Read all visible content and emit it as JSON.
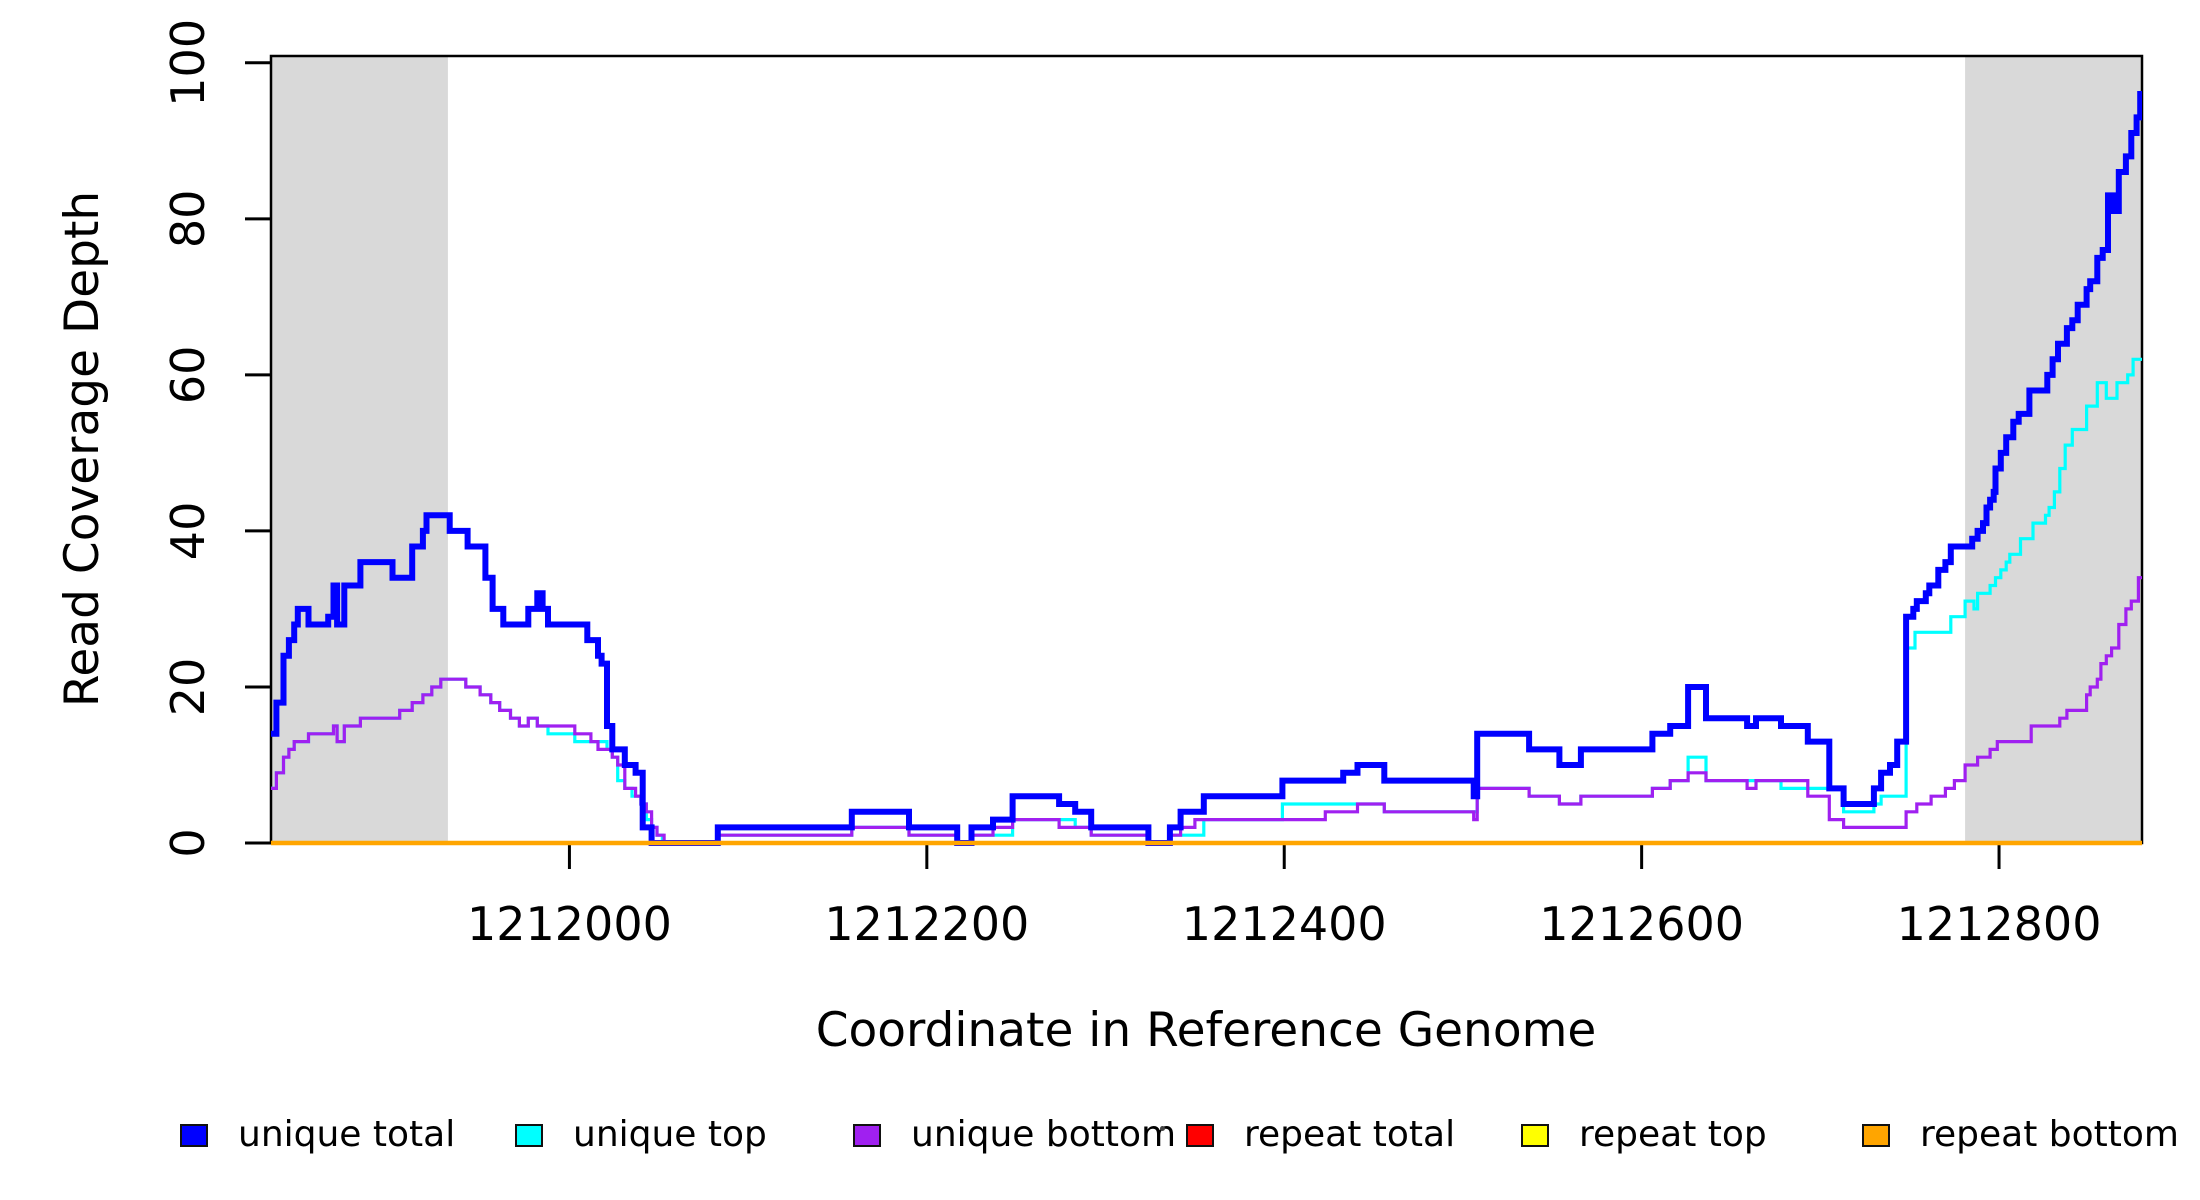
{
  "figure": {
    "kind": "read coverage depth step plot",
    "background_color": "#ffffff",
    "band_color": "#d9d9d9",
    "axis_color": "#000000"
  },
  "legend": {
    "items": [
      {
        "label": "unique total",
        "color": "#0000ff"
      },
      {
        "label": "unique top",
        "color": "#00ffff"
      },
      {
        "label": "unique bottom",
        "color": "#a020f0"
      },
      {
        "label": "repeat total",
        "color": "#ff0000"
      },
      {
        "label": "repeat top",
        "color": "#ffff00"
      },
      {
        "label": "repeat bottom",
        "color": "#ffa500"
      }
    ],
    "has_stray_dot": true
  },
  "chart_data": {
    "type": "step",
    "title": "",
    "xlabel": "Coordinate in Reference Genome",
    "ylabel": "Read Coverage Depth",
    "xlim": [
      1211833,
      1212880
    ],
    "ylim": [
      0,
      101
    ],
    "x_ticks": [
      1212000,
      1212200,
      1212400,
      1212600,
      1212800
    ],
    "y_ticks": [
      0,
      20,
      40,
      60,
      80,
      100
    ],
    "grid": false,
    "legend_position": "bottom-horizontal",
    "shaded_regions": [
      {
        "from": 1211833,
        "to": 1211932
      },
      {
        "from": 1212781,
        "to": 1212880
      }
    ],
    "series": [
      {
        "name": "unique total",
        "color": "#0000ff",
        "line_width": 6,
        "points": [
          [
            1211833,
            14
          ],
          [
            1211836,
            18
          ],
          [
            1211840,
            24
          ],
          [
            1211843,
            26
          ],
          [
            1211846,
            28
          ],
          [
            1211848,
            30
          ],
          [
            1211854,
            28
          ],
          [
            1211865,
            29
          ],
          [
            1211868,
            33
          ],
          [
            1211870,
            28
          ],
          [
            1211874,
            33
          ],
          [
            1211883,
            36
          ],
          [
            1211901,
            34
          ],
          [
            1211912,
            38
          ],
          [
            1211918,
            40
          ],
          [
            1211920,
            42
          ],
          [
            1211933,
            40
          ],
          [
            1211943,
            38
          ],
          [
            1211953,
            34
          ],
          [
            1211957,
            30
          ],
          [
            1211963,
            28
          ],
          [
            1211977,
            30
          ],
          [
            1211982,
            32
          ],
          [
            1211985,
            30
          ],
          [
            1211988,
            28
          ],
          [
            1212010,
            26
          ],
          [
            1212016,
            24
          ],
          [
            1212018,
            23
          ],
          [
            1212021,
            15
          ],
          [
            1212024,
            12
          ],
          [
            1212031,
            10
          ],
          [
            1212037,
            9
          ],
          [
            1212041,
            2
          ],
          [
            1212046,
            0
          ],
          [
            1212083,
            2
          ],
          [
            1212158,
            4
          ],
          [
            1212190,
            2
          ],
          [
            1212217,
            0
          ],
          [
            1212225,
            2
          ],
          [
            1212237,
            3
          ],
          [
            1212248,
            6
          ],
          [
            1212274,
            5
          ],
          [
            1212283,
            4
          ],
          [
            1212292,
            2
          ],
          [
            1212324,
            0
          ],
          [
            1212336,
            2
          ],
          [
            1212342,
            4
          ],
          [
            1212355,
            6
          ],
          [
            1212399,
            8
          ],
          [
            1212433,
            9
          ],
          [
            1212441,
            10
          ],
          [
            1212456,
            8
          ],
          [
            1212506,
            6
          ],
          [
            1212508,
            14
          ],
          [
            1212537,
            12
          ],
          [
            1212554,
            10
          ],
          [
            1212566,
            12
          ],
          [
            1212606,
            14
          ],
          [
            1212616,
            15
          ],
          [
            1212626,
            20
          ],
          [
            1212636,
            16
          ],
          [
            1212659,
            15
          ],
          [
            1212664,
            16
          ],
          [
            1212678,
            15
          ],
          [
            1212693,
            13
          ],
          [
            1212705,
            7
          ],
          [
            1212713,
            5
          ],
          [
            1212730,
            7
          ],
          [
            1212734,
            9
          ],
          [
            1212739,
            10
          ],
          [
            1212743,
            13
          ],
          [
            1212748,
            29
          ],
          [
            1212752,
            30
          ],
          [
            1212754,
            31
          ],
          [
            1212759,
            32
          ],
          [
            1212761,
            33
          ],
          [
            1212766,
            35
          ],
          [
            1212770,
            36
          ],
          [
            1212773,
            38
          ],
          [
            1212785,
            39
          ],
          [
            1212788,
            40
          ],
          [
            1212791,
            41
          ],
          [
            1212793,
            43
          ],
          [
            1212795,
            44
          ],
          [
            1212797,
            45
          ],
          [
            1212798,
            48
          ],
          [
            1212801,
            50
          ],
          [
            1212804,
            52
          ],
          [
            1212808,
            54
          ],
          [
            1212811,
            55
          ],
          [
            1212817,
            58
          ],
          [
            1212827,
            60
          ],
          [
            1212830,
            62
          ],
          [
            1212833,
            64
          ],
          [
            1212838,
            66
          ],
          [
            1212841,
            67
          ],
          [
            1212844,
            69
          ],
          [
            1212849,
            71
          ],
          [
            1212851,
            72
          ],
          [
            1212855,
            75
          ],
          [
            1212858,
            76
          ],
          [
            1212861,
            83
          ],
          [
            1212864,
            81
          ],
          [
            1212867,
            86
          ],
          [
            1212871,
            88
          ],
          [
            1212874,
            91
          ],
          [
            1212877,
            93
          ],
          [
            1212879,
            96
          ],
          [
            1212880,
            96
          ]
        ]
      },
      {
        "name": "unique top",
        "color": "#00ffff",
        "line_width": 3.2,
        "points": [
          [
            1211833,
            7
          ],
          [
            1211836,
            9
          ],
          [
            1211840,
            11
          ],
          [
            1211843,
            12
          ],
          [
            1211846,
            13
          ],
          [
            1211854,
            14
          ],
          [
            1211865,
            14
          ],
          [
            1211868,
            15
          ],
          [
            1211870,
            13
          ],
          [
            1211874,
            15
          ],
          [
            1211883,
            16
          ],
          [
            1211905,
            17
          ],
          [
            1211912,
            18
          ],
          [
            1211918,
            19
          ],
          [
            1211923,
            20
          ],
          [
            1211928,
            21
          ],
          [
            1211942,
            20
          ],
          [
            1211950,
            19
          ],
          [
            1211956,
            18
          ],
          [
            1211961,
            17
          ],
          [
            1211967,
            16
          ],
          [
            1211972,
            15
          ],
          [
            1211977,
            16
          ],
          [
            1211982,
            15
          ],
          [
            1211988,
            14
          ],
          [
            1212003,
            13
          ],
          [
            1212021,
            12
          ],
          [
            1212024,
            11
          ],
          [
            1212027,
            8
          ],
          [
            1212031,
            7
          ],
          [
            1212035,
            6
          ],
          [
            1212040,
            5
          ],
          [
            1212043,
            3
          ],
          [
            1212046,
            2
          ],
          [
            1212049,
            1
          ],
          [
            1212052,
            0
          ],
          [
            1212083,
            1
          ],
          [
            1212158,
            2
          ],
          [
            1212190,
            1
          ],
          [
            1212217,
            0
          ],
          [
            1212225,
            1
          ],
          [
            1212248,
            3
          ],
          [
            1212283,
            2
          ],
          [
            1212292,
            1
          ],
          [
            1212324,
            0
          ],
          [
            1212336,
            1
          ],
          [
            1212355,
            3
          ],
          [
            1212399,
            5
          ],
          [
            1212441,
            5
          ],
          [
            1212456,
            4
          ],
          [
            1212508,
            7
          ],
          [
            1212537,
            6
          ],
          [
            1212554,
            5
          ],
          [
            1212566,
            6
          ],
          [
            1212606,
            7
          ],
          [
            1212616,
            8
          ],
          [
            1212626,
            11
          ],
          [
            1212636,
            8
          ],
          [
            1212678,
            7
          ],
          [
            1212713,
            4
          ],
          [
            1212730,
            5
          ],
          [
            1212734,
            6
          ],
          [
            1212743,
            6
          ],
          [
            1212748,
            25
          ],
          [
            1212753,
            27
          ],
          [
            1212773,
            29
          ],
          [
            1212781,
            31
          ],
          [
            1212786,
            30
          ],
          [
            1212788,
            32
          ],
          [
            1212795,
            33
          ],
          [
            1212798,
            34
          ],
          [
            1212801,
            35
          ],
          [
            1212804,
            36
          ],
          [
            1212806,
            37
          ],
          [
            1212812,
            39
          ],
          [
            1212819,
            41
          ],
          [
            1212826,
            42
          ],
          [
            1212828,
            43
          ],
          [
            1212831,
            45
          ],
          [
            1212834,
            48
          ],
          [
            1212837,
            51
          ],
          [
            1212841,
            53
          ],
          [
            1212849,
            56
          ],
          [
            1212855,
            59
          ],
          [
            1212860,
            57
          ],
          [
            1212866,
            59
          ],
          [
            1212872,
            60
          ],
          [
            1212875,
            62
          ],
          [
            1212880,
            62
          ]
        ]
      },
      {
        "name": "unique bottom",
        "color": "#a020f0",
        "line_width": 3.2,
        "points": [
          [
            1211833,
            7
          ],
          [
            1211836,
            9
          ],
          [
            1211840,
            11
          ],
          [
            1211843,
            12
          ],
          [
            1211846,
            13
          ],
          [
            1211854,
            14
          ],
          [
            1211865,
            14
          ],
          [
            1211868,
            15
          ],
          [
            1211870,
            13
          ],
          [
            1211874,
            15
          ],
          [
            1211883,
            16
          ],
          [
            1211905,
            17
          ],
          [
            1211912,
            18
          ],
          [
            1211918,
            19
          ],
          [
            1211923,
            20
          ],
          [
            1211928,
            21
          ],
          [
            1211942,
            20
          ],
          [
            1211950,
            19
          ],
          [
            1211956,
            18
          ],
          [
            1211961,
            17
          ],
          [
            1211967,
            16
          ],
          [
            1211972,
            15
          ],
          [
            1211977,
            16
          ],
          [
            1211982,
            15
          ],
          [
            1211988,
            15
          ],
          [
            1212003,
            14
          ],
          [
            1212012,
            13
          ],
          [
            1212016,
            12
          ],
          [
            1212024,
            11
          ],
          [
            1212027,
            10
          ],
          [
            1212031,
            7
          ],
          [
            1212037,
            6
          ],
          [
            1212040,
            5
          ],
          [
            1212043,
            4
          ],
          [
            1212046,
            2
          ],
          [
            1212049,
            1
          ],
          [
            1212053,
            0
          ],
          [
            1212083,
            1
          ],
          [
            1212158,
            2
          ],
          [
            1212190,
            1
          ],
          [
            1212217,
            0
          ],
          [
            1212225,
            1
          ],
          [
            1212237,
            2
          ],
          [
            1212248,
            3
          ],
          [
            1212274,
            2
          ],
          [
            1212292,
            1
          ],
          [
            1212324,
            0
          ],
          [
            1212336,
            1
          ],
          [
            1212342,
            2
          ],
          [
            1212350,
            3
          ],
          [
            1212423,
            4
          ],
          [
            1212441,
            5
          ],
          [
            1212456,
            4
          ],
          [
            1212506,
            3
          ],
          [
            1212508,
            7
          ],
          [
            1212537,
            6
          ],
          [
            1212554,
            5
          ],
          [
            1212566,
            6
          ],
          [
            1212606,
            7
          ],
          [
            1212616,
            8
          ],
          [
            1212626,
            9
          ],
          [
            1212636,
            8
          ],
          [
            1212659,
            7
          ],
          [
            1212664,
            8
          ],
          [
            1212693,
            6
          ],
          [
            1212705,
            3
          ],
          [
            1212713,
            2
          ],
          [
            1212748,
            4
          ],
          [
            1212754,
            5
          ],
          [
            1212762,
            6
          ],
          [
            1212770,
            7
          ],
          [
            1212775,
            8
          ],
          [
            1212781,
            10
          ],
          [
            1212788,
            11
          ],
          [
            1212795,
            12
          ],
          [
            1212799,
            13
          ],
          [
            1212818,
            15
          ],
          [
            1212834,
            16
          ],
          [
            1212838,
            17
          ],
          [
            1212849,
            19
          ],
          [
            1212851,
            20
          ],
          [
            1212855,
            21
          ],
          [
            1212857,
            23
          ],
          [
            1212860,
            24
          ],
          [
            1212863,
            25
          ],
          [
            1212867,
            28
          ],
          [
            1212871,
            30
          ],
          [
            1212874,
            31
          ],
          [
            1212878,
            34
          ],
          [
            1212880,
            34
          ]
        ]
      },
      {
        "name": "repeat total",
        "color": "#ff0000",
        "line_width": 3.2,
        "points": [
          [
            1211833,
            0
          ],
          [
            1212880,
            0
          ]
        ]
      },
      {
        "name": "repeat top",
        "color": "#ffff00",
        "line_width": 3.2,
        "points": [
          [
            1211833,
            0
          ],
          [
            1212880,
            0
          ]
        ]
      },
      {
        "name": "repeat bottom",
        "color": "#ffa500",
        "line_width": 4.5,
        "points": [
          [
            1211833,
            0
          ],
          [
            1212880,
            0
          ]
        ]
      }
    ]
  }
}
